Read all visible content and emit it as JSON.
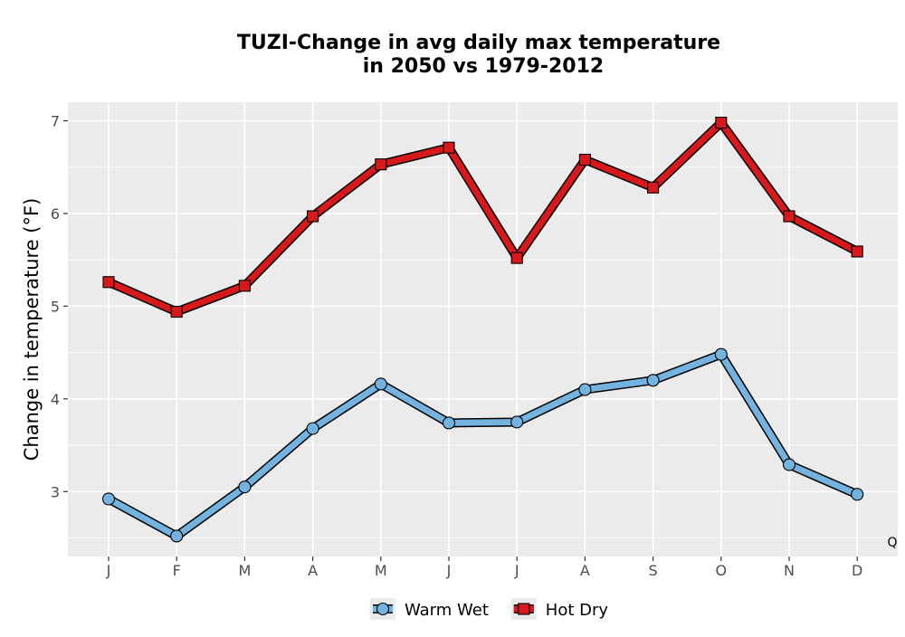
{
  "chart_data": {
    "type": "line",
    "title_line1": "TUZI-Change in avg daily max temperature",
    "title_line2": "in 2050 vs 1979-2012",
    "xlabel": "",
    "ylabel": "Change in temperature (°F)",
    "categories": [
      "J",
      "F",
      "M",
      "A",
      "M",
      "J",
      "J",
      "A",
      "S",
      "O",
      "N",
      "D"
    ],
    "ylim": [
      2.3,
      7.2
    ],
    "yticks": [
      3,
      4,
      5,
      6,
      7
    ],
    "grid": true,
    "legend_position": "bottom",
    "corner_mark": "Q",
    "series": [
      {
        "name": "Warm Wet",
        "marker": "circle",
        "color": "#74b3df",
        "values": [
          2.92,
          2.52,
          3.05,
          3.68,
          4.16,
          3.74,
          3.75,
          4.1,
          4.2,
          4.48,
          3.29,
          2.97
        ]
      },
      {
        "name": "Hot Dry",
        "marker": "square",
        "color": "#d7191c",
        "values": [
          5.26,
          4.94,
          5.22,
          5.97,
          6.53,
          6.71,
          5.52,
          6.58,
          6.28,
          6.98,
          5.97,
          5.59
        ]
      }
    ]
  }
}
